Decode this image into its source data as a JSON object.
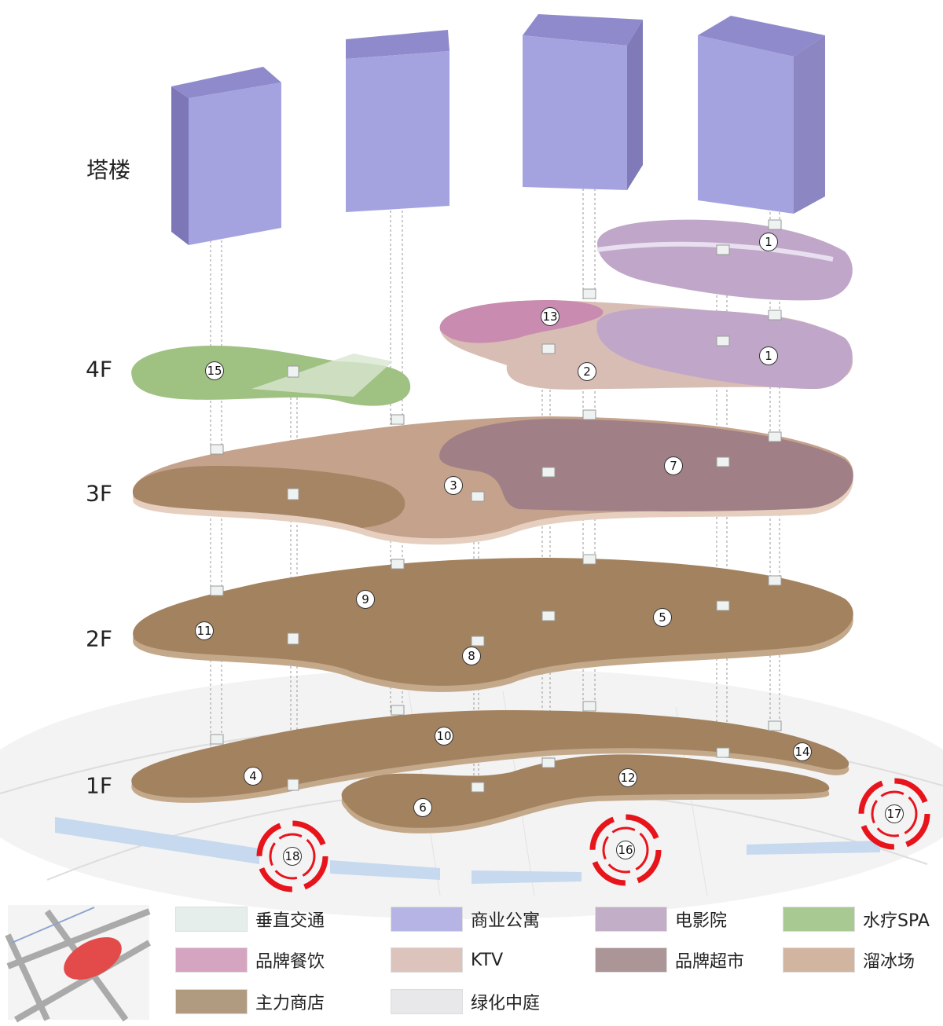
{
  "floor_labels": {
    "tower": "塔楼",
    "f4": "4F",
    "f3": "3F",
    "f2": "2F",
    "f1": "1F"
  },
  "legend": [
    {
      "label": "垂直交通",
      "color": "#e6eeec"
    },
    {
      "label": "商业公寓",
      "color": "#b5b4e4"
    },
    {
      "label": "电影院",
      "color": "#c3aec7"
    },
    {
      "label": "水疗SPA",
      "color": "#a9c992"
    },
    {
      "label": "品牌餐饮",
      "color": "#d4a4c0"
    },
    {
      "label": "KTV",
      "color": "#dcc3bb"
    },
    {
      "label": "品牌超市",
      "color": "#ab9597"
    },
    {
      "label": "溜冰场",
      "color": "#d2b5a1"
    },
    {
      "label": "主力商店",
      "color": "#b09a80"
    },
    {
      "label": "绿化中庭",
      "color": "#e8e8ea"
    }
  ],
  "markers": [
    "1",
    "1",
    "13",
    "2",
    "15",
    "7",
    "3",
    "9",
    "11",
    "5",
    "8",
    "10",
    "14",
    "4",
    "12",
    "6",
    "16",
    "17",
    "18"
  ],
  "colors": {
    "tower": "#a4a3e0",
    "cinema": "#c0a6c8",
    "restaurant": "#c98bb0",
    "ktv": "#d8bdb5",
    "spa": "#9fc182",
    "supermarket": "#a07f86",
    "ice": "#c4a28c",
    "anchor": "#a3825f",
    "entrance": "#e8141c"
  }
}
